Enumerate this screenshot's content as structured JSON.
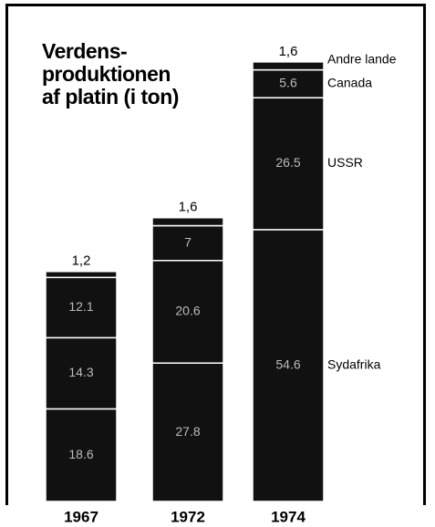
{
  "chart_data": {
    "type": "stacked-bar",
    "title": "Verdens-\nproduktionen\naf platin (i ton)",
    "categories": [
      "1967",
      "1972",
      "1974"
    ],
    "series": [
      {
        "name": "Sydafrika",
        "color": "#111111",
        "values": [
          18.6,
          27.8,
          54.6
        ]
      },
      {
        "name": "USSR",
        "color": "#111111",
        "values": [
          14.3,
          20.6,
          26.5
        ]
      },
      {
        "name": "Canada",
        "color": "#111111",
        "values": [
          12.1,
          7.0,
          5.6
        ]
      },
      {
        "name": "Andre lande",
        "color": "#111111",
        "values": [
          1.2,
          1.6,
          1.6
        ],
        "value_labels": [
          "1,2",
          "1,6",
          "1,6"
        ]
      }
    ]
  }
}
